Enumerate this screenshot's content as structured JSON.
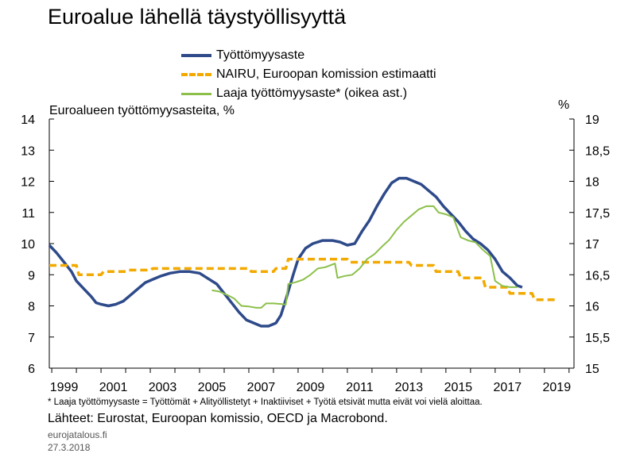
{
  "chart_data": {
    "type": "line",
    "title": "Euroalue lähellä täystyöllisyyttä",
    "ylabel": "Euroalueen työttömyysasteita, %",
    "y2label": "%",
    "xlim": [
      1998.9,
      2020.2
    ],
    "ylim": [
      6,
      14
    ],
    "y2lim": [
      15,
      19
    ],
    "x_ticks": [
      1999,
      2001,
      2003,
      2005,
      2007,
      2009,
      2011,
      2013,
      2015,
      2017,
      2019
    ],
    "y_ticks": [
      6,
      7,
      8,
      9,
      10,
      11,
      12,
      13,
      14
    ],
    "y2_ticks": [
      "15",
      "15,5",
      "16",
      "16,5",
      "17",
      "17,5",
      "18",
      "18,5",
      "19"
    ],
    "legend_position": "top",
    "grid": false,
    "series": [
      {
        "name": "Työttömyysaste",
        "color": "#2e4a8a",
        "axis": "left",
        "style": "solid",
        "points": [
          [
            1998.9,
            9.95
          ],
          [
            1999.2,
            9.7
          ],
          [
            1999.5,
            9.4
          ],
          [
            1999.8,
            9.1
          ],
          [
            2000.0,
            8.8
          ],
          [
            2000.3,
            8.55
          ],
          [
            2000.6,
            8.3
          ],
          [
            2000.8,
            8.1
          ],
          [
            2001.0,
            8.05
          ],
          [
            2001.3,
            8.0
          ],
          [
            2001.6,
            8.05
          ],
          [
            2001.9,
            8.15
          ],
          [
            2002.2,
            8.35
          ],
          [
            2002.5,
            8.55
          ],
          [
            2002.8,
            8.75
          ],
          [
            2003.1,
            8.85
          ],
          [
            2003.4,
            8.95
          ],
          [
            2003.8,
            9.05
          ],
          [
            2004.2,
            9.1
          ],
          [
            2004.6,
            9.1
          ],
          [
            2005.0,
            9.05
          ],
          [
            2005.3,
            8.9
          ],
          [
            2005.7,
            8.7
          ],
          [
            2006.0,
            8.4
          ],
          [
            2006.3,
            8.1
          ],
          [
            2006.6,
            7.8
          ],
          [
            2006.9,
            7.55
          ],
          [
            2007.2,
            7.45
          ],
          [
            2007.5,
            7.35
          ],
          [
            2007.8,
            7.35
          ],
          [
            2008.1,
            7.45
          ],
          [
            2008.3,
            7.7
          ],
          [
            2008.5,
            8.2
          ],
          [
            2008.8,
            9.0
          ],
          [
            2009.0,
            9.5
          ],
          [
            2009.3,
            9.85
          ],
          [
            2009.6,
            10.0
          ],
          [
            2010.0,
            10.1
          ],
          [
            2010.4,
            10.1
          ],
          [
            2010.7,
            10.05
          ],
          [
            2011.0,
            9.95
          ],
          [
            2011.3,
            10.0
          ],
          [
            2011.6,
            10.4
          ],
          [
            2011.9,
            10.75
          ],
          [
            2012.2,
            11.2
          ],
          [
            2012.5,
            11.6
          ],
          [
            2012.8,
            11.95
          ],
          [
            2013.1,
            12.1
          ],
          [
            2013.4,
            12.1
          ],
          [
            2013.7,
            12.0
          ],
          [
            2014.0,
            11.9
          ],
          [
            2014.3,
            11.7
          ],
          [
            2014.6,
            11.5
          ],
          [
            2014.9,
            11.2
          ],
          [
            2015.2,
            10.95
          ],
          [
            2015.5,
            10.7
          ],
          [
            2015.8,
            10.4
          ],
          [
            2016.1,
            10.15
          ],
          [
            2016.4,
            10.0
          ],
          [
            2016.7,
            9.8
          ],
          [
            2017.0,
            9.5
          ],
          [
            2017.3,
            9.1
          ],
          [
            2017.6,
            8.9
          ],
          [
            2017.9,
            8.65
          ],
          [
            2018.1,
            8.6
          ]
        ]
      },
      {
        "name": "NAIRU, Euroopan komission estimaatti",
        "color": "#f2a900",
        "axis": "left",
        "style": "dashed",
        "points": [
          [
            1998.9,
            9.3
          ],
          [
            2000.0,
            9.3
          ],
          [
            2000.1,
            9.0
          ],
          [
            2001.0,
            9.0
          ],
          [
            2001.1,
            9.1
          ],
          [
            2002.0,
            9.1
          ],
          [
            2002.1,
            9.15
          ],
          [
            2003.0,
            9.15
          ],
          [
            2003.1,
            9.2
          ],
          [
            2007.0,
            9.2
          ],
          [
            2007.1,
            9.1
          ],
          [
            2008.0,
            9.1
          ],
          [
            2008.1,
            9.2
          ],
          [
            2008.5,
            9.2
          ],
          [
            2008.6,
            9.5
          ],
          [
            2011.0,
            9.5
          ],
          [
            2011.1,
            9.4
          ],
          [
            2013.5,
            9.4
          ],
          [
            2013.6,
            9.3
          ],
          [
            2014.5,
            9.3
          ],
          [
            2014.6,
            9.1
          ],
          [
            2015.5,
            9.1
          ],
          [
            2015.6,
            8.9
          ],
          [
            2016.5,
            8.9
          ],
          [
            2016.6,
            8.6
          ],
          [
            2017.5,
            8.6
          ],
          [
            2017.6,
            8.4
          ],
          [
            2018.5,
            8.4
          ],
          [
            2018.6,
            8.2
          ],
          [
            2019.5,
            8.2
          ]
        ]
      },
      {
        "name": "Laaja työttömyysaste* (oikea ast.)",
        "color": "#8cc04a",
        "axis": "right",
        "style": "solid",
        "points": [
          [
            2005.5,
            16.25
          ],
          [
            2005.8,
            16.23
          ],
          [
            2006.1,
            16.18
          ],
          [
            2006.4,
            16.12
          ],
          [
            2006.7,
            16.0
          ],
          [
            2007.0,
            15.99
          ],
          [
            2007.3,
            15.97
          ],
          [
            2007.5,
            15.97
          ],
          [
            2007.7,
            16.04
          ],
          [
            2008.0,
            16.04
          ],
          [
            2008.3,
            16.03
          ],
          [
            2008.5,
            16.02
          ],
          [
            2008.6,
            16.35
          ],
          [
            2008.9,
            16.38
          ],
          [
            2009.2,
            16.42
          ],
          [
            2009.5,
            16.5
          ],
          [
            2009.8,
            16.6
          ],
          [
            2010.1,
            16.62
          ],
          [
            2010.3,
            16.65
          ],
          [
            2010.5,
            16.68
          ],
          [
            2010.6,
            16.45
          ],
          [
            2010.9,
            16.48
          ],
          [
            2011.2,
            16.5
          ],
          [
            2011.5,
            16.6
          ],
          [
            2011.8,
            16.75
          ],
          [
            2012.1,
            16.83
          ],
          [
            2012.4,
            16.95
          ],
          [
            2012.7,
            17.06
          ],
          [
            2013.0,
            17.22
          ],
          [
            2013.3,
            17.35
          ],
          [
            2013.6,
            17.45
          ],
          [
            2013.9,
            17.55
          ],
          [
            2014.2,
            17.6
          ],
          [
            2014.5,
            17.6
          ],
          [
            2014.7,
            17.5
          ],
          [
            2015.0,
            17.47
          ],
          [
            2015.3,
            17.42
          ],
          [
            2015.6,
            17.1
          ],
          [
            2015.9,
            17.05
          ],
          [
            2016.2,
            17.02
          ],
          [
            2016.5,
            16.9
          ],
          [
            2016.8,
            16.8
          ],
          [
            2017.0,
            16.4
          ],
          [
            2017.3,
            16.32
          ],
          [
            2017.6,
            16.3
          ],
          [
            2017.9,
            16.3
          ]
        ]
      }
    ],
    "footnote": "* Laaja työttömyysaste = Työttömät + Alityöllistetyt + Inaktiiviset + Työtä etsivät mutta eivät voi vielä aloittaa.",
    "sources": "Lähteet: Eurostat, Euroopan komissio, OECD ja Macrobond.",
    "site": "eurojatalous.fi",
    "date": "27.3.2018"
  }
}
